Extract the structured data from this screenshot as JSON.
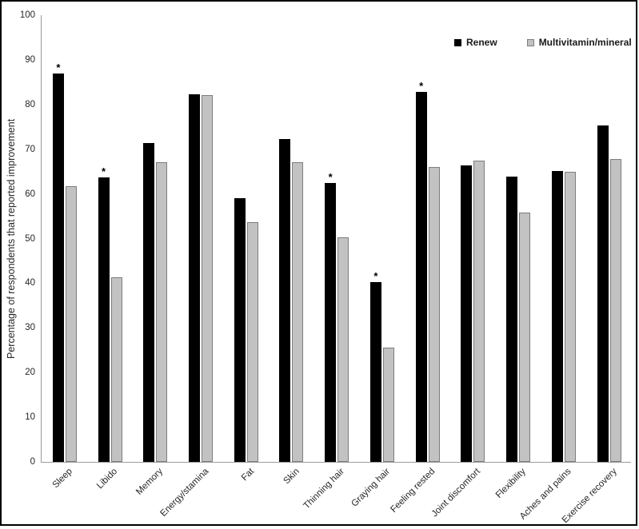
{
  "figure": {
    "background": "#ffffff",
    "border_color": "#000000",
    "axis_line_color": "#9b9b9b",
    "text_color": "#262626"
  },
  "chart_data": {
    "type": "bar",
    "title": "",
    "xlabel": "",
    "ylabel": "Percentage of respondents that reported improvement",
    "ylim": [
      0,
      100
    ],
    "ytick_step": 10,
    "ytick_labels": [
      "0",
      "10",
      "20",
      "30",
      "40",
      "50",
      "60",
      "70",
      "80",
      "90",
      "100"
    ],
    "grid": false,
    "legend_position": "top-right",
    "categories": [
      "Sleep",
      "Libido",
      "Memory",
      "Energy/stamina",
      "Fat",
      "Skin",
      "Thinning hair",
      "Graying hair",
      "Feeling rested",
      "Joint discomfort",
      "Flexibility",
      "Aches and pains",
      "Exercise recovery"
    ],
    "series": [
      {
        "name": "Renew",
        "color": "#000000",
        "values": [
          87.0,
          63.6,
          71.4,
          82.3,
          59.0,
          72.3,
          62.4,
          40.3,
          82.8,
          66.4,
          63.9,
          65.1,
          75.3
        ]
      },
      {
        "name": "Multivitamin/mineral",
        "color": "#c2c2c2",
        "border_color": "#7d7d7d",
        "values": [
          61.7,
          41.3,
          67.1,
          82.2,
          53.7,
          67.1,
          50.3,
          25.6,
          66.0,
          67.4,
          55.8,
          64.9,
          67.8
        ]
      }
    ],
    "annotations": {
      "marker": "*",
      "on_series": "Renew",
      "categories": [
        "Sleep",
        "Libido",
        "Thinning hair",
        "Graying hair",
        "Feeling rested"
      ]
    }
  }
}
